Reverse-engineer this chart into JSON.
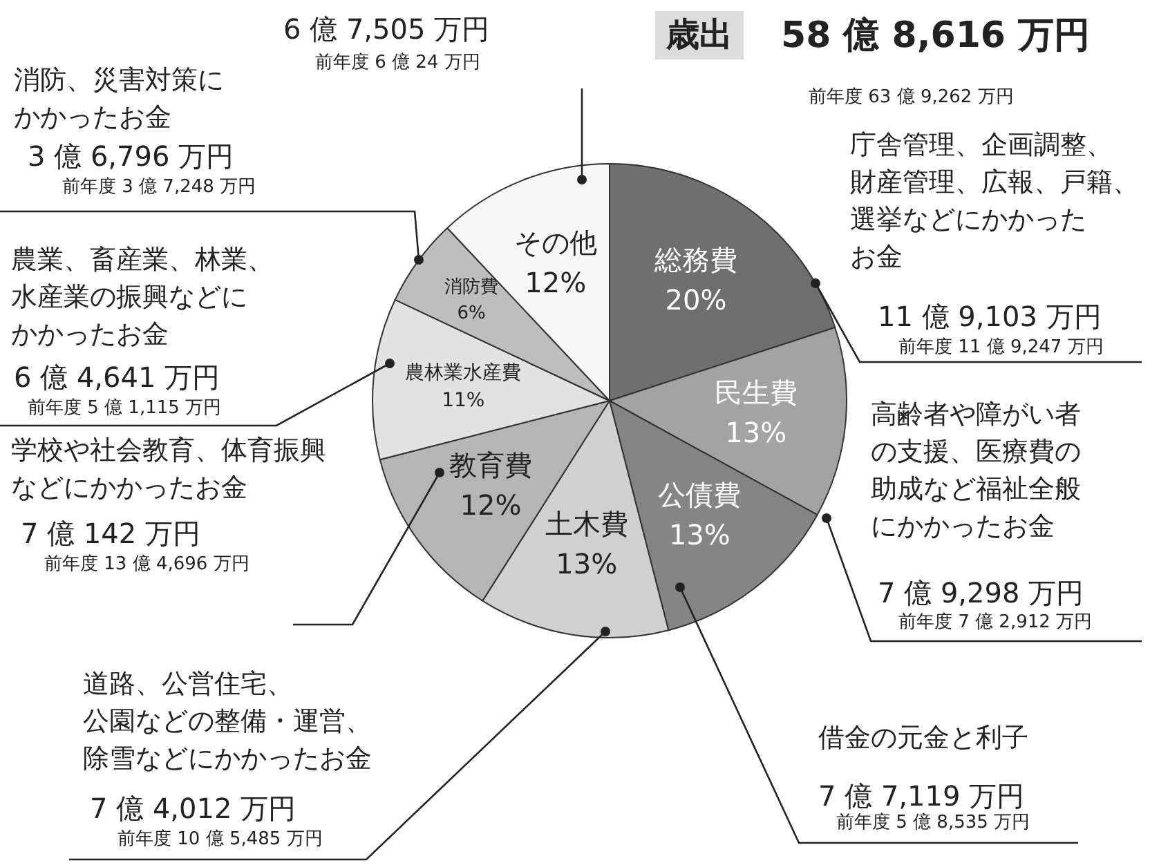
{
  "chart_data": {
    "type": "pie",
    "title": "歳出",
    "subtitle": "58 億 8,616 万円",
    "categories": [
      "総務費",
      "民生費",
      "公債費",
      "土木費",
      "教育費",
      "農林業水産費",
      "消防費",
      "その他"
    ],
    "values": [
      20,
      13,
      13,
      13,
      12,
      11,
      6,
      12
    ],
    "value_labels": [
      "20%",
      "13%",
      "13%",
      "13%",
      "12%",
      "11%",
      "6%",
      "12%"
    ],
    "colors": [
      "#6f6f6f",
      "#a3a3a3",
      "#858585",
      "#d0d0d0",
      "#b5b5b5",
      "#e2e2e2",
      "#bebebe",
      "#f7f7f7"
    ],
    "legend": false,
    "annotations": [
      "6 億 7,505 万円",
      "前年度 6 億 24 万円",
      "消防、災害対策に",
      "かかったお金",
      "3 億 6,796 万円",
      "前年度 3 億 7,248 万円",
      "農業、畜産業、林業、",
      "水産業の振興などに",
      "かかったお金",
      "6 億 4,641 万円",
      "前年度 5 億 1,115 万円",
      "学校や社会教育、体育振興",
      "などにかかったお金",
      "7 億 142 万円",
      "前年度 13 億 4,696 万円",
      "道路、公営住宅、",
      "公園などの整備・運営、",
      "除雪などにかかったお金",
      "7 億 4,012 万円",
      "前年度 10 億 5,485 万円",
      "前年度 63 億 9,262 万円",
      "庁舎管理、企画調整、",
      "財産管理、広報、戸籍、",
      "選挙などにかかった",
      "お金",
      "11 億 9,103 万円",
      "前年度 11 億 9,247 万円",
      "高齢者や障がい者",
      "の支援、医療費の",
      "助成など福祉全般",
      "にかかったお金",
      "7 億 9,298 万円",
      "前年度 7 億 2,912 万円",
      "借金の元金と利子",
      "7 億 7,119 万円",
      "前年度 5 億 8,535 万円"
    ]
  }
}
